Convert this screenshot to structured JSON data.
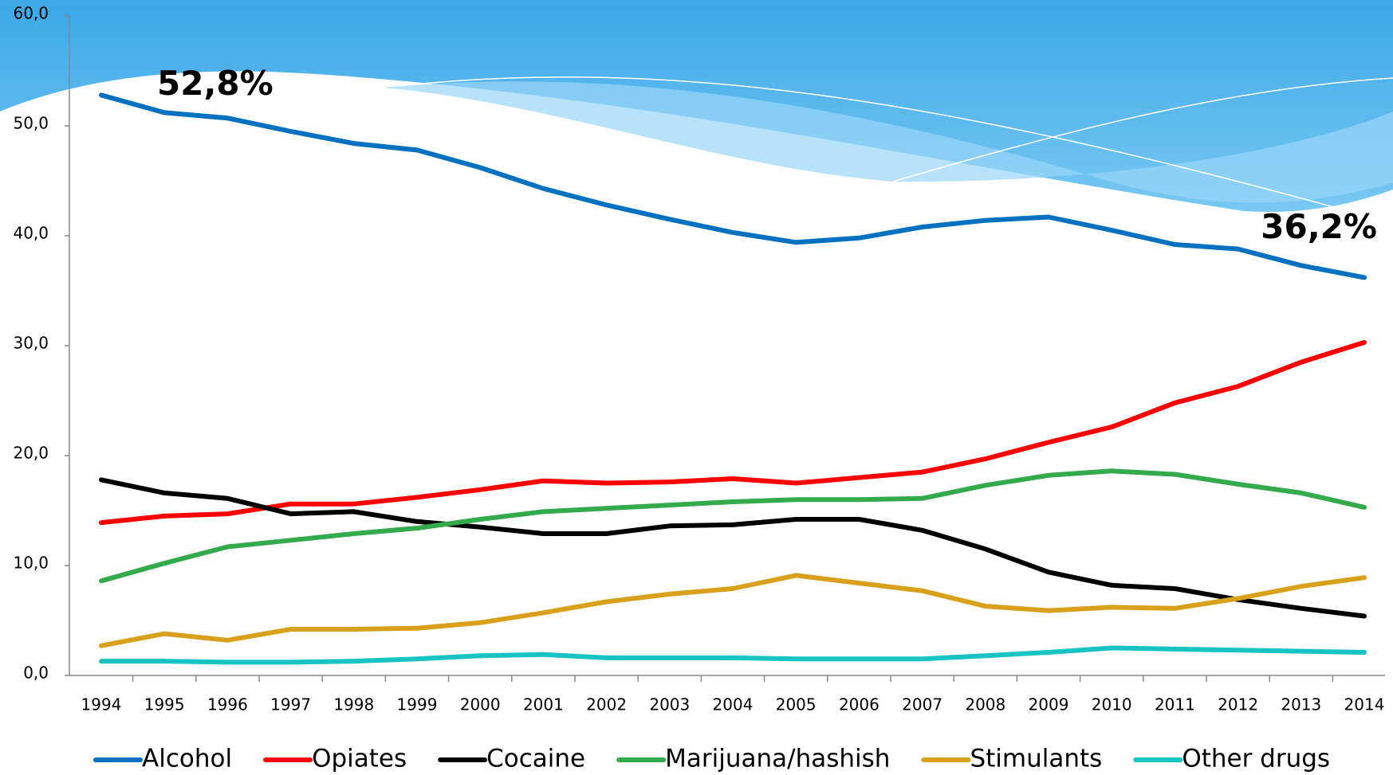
{
  "chart_data": {
    "type": "line",
    "categories": [
      "1994",
      "1995",
      "1996",
      "1997",
      "1998",
      "1999",
      "2000",
      "2001",
      "2002",
      "2003",
      "2004",
      "2005",
      "2006",
      "2007",
      "2008",
      "2009",
      "2010",
      "2011",
      "2012",
      "2013",
      "2014"
    ],
    "ylim": [
      0,
      60
    ],
    "yticks": [
      {
        "value": 0,
        "label": "0,0"
      },
      {
        "value": 10,
        "label": "10,0"
      },
      {
        "value": 20,
        "label": "20,0"
      },
      {
        "value": 30,
        "label": "30,0"
      },
      {
        "value": 40,
        "label": "40,0"
      },
      {
        "value": 50,
        "label": "50,0"
      },
      {
        "value": 60,
        "label": "60,0"
      }
    ],
    "legend": "bottom",
    "series": [
      {
        "name": "Alcohol",
        "color": "#0070c0",
        "values": [
          52.8,
          51.2,
          50.7,
          49.5,
          48.4,
          47.8,
          46.2,
          44.3,
          42.8,
          41.5,
          40.3,
          39.4,
          39.8,
          40.8,
          41.4,
          41.7,
          40.5,
          39.2,
          38.8,
          37.3,
          36.2
        ],
        "value_labels": [
          "52,8%",
          null,
          null,
          null,
          null,
          null,
          null,
          null,
          null,
          null,
          null,
          null,
          null,
          null,
          null,
          null,
          null,
          null,
          null,
          null,
          "36,2%"
        ]
      },
      {
        "name": "Opiates",
        "color": "#ff0000",
        "values": [
          13.9,
          14.5,
          14.7,
          15.6,
          15.6,
          16.2,
          16.9,
          17.7,
          17.5,
          17.6,
          17.9,
          17.5,
          18.0,
          18.5,
          19.7,
          21.2,
          22.6,
          24.8,
          26.3,
          28.5,
          30.3
        ]
      },
      {
        "name": "Cocaine",
        "color": "#000000",
        "values": [
          17.8,
          16.6,
          16.1,
          14.7,
          14.9,
          14.0,
          13.5,
          12.9,
          12.9,
          13.6,
          13.7,
          14.2,
          14.2,
          13.2,
          11.5,
          9.4,
          8.2,
          7.9,
          6.9,
          6.1,
          5.4
        ]
      },
      {
        "name": "Marijuana/hashish",
        "color": "#33aa4c",
        "values": [
          8.6,
          10.2,
          11.7,
          12.3,
          12.9,
          13.4,
          14.2,
          14.9,
          15.2,
          15.5,
          15.8,
          16.0,
          16.0,
          16.1,
          17.3,
          18.2,
          18.6,
          18.3,
          17.4,
          16.6,
          15.3
        ]
      },
      {
        "name": "Stimulants",
        "color": "#d9a01c",
        "values": [
          2.7,
          3.8,
          3.2,
          4.2,
          4.2,
          4.3,
          4.8,
          5.7,
          6.7,
          7.4,
          7.9,
          9.1,
          8.4,
          7.7,
          6.3,
          5.9,
          6.2,
          6.1,
          7.0,
          8.1,
          8.9
        ]
      },
      {
        "name": "Other drugs",
        "color": "#17c3c3",
        "values": [
          1.3,
          1.3,
          1.2,
          1.2,
          1.3,
          1.5,
          1.8,
          1.9,
          1.6,
          1.6,
          1.6,
          1.5,
          1.5,
          1.5,
          1.8,
          2.1,
          2.5,
          2.4,
          2.3,
          2.2,
          2.1
        ]
      }
    ]
  }
}
